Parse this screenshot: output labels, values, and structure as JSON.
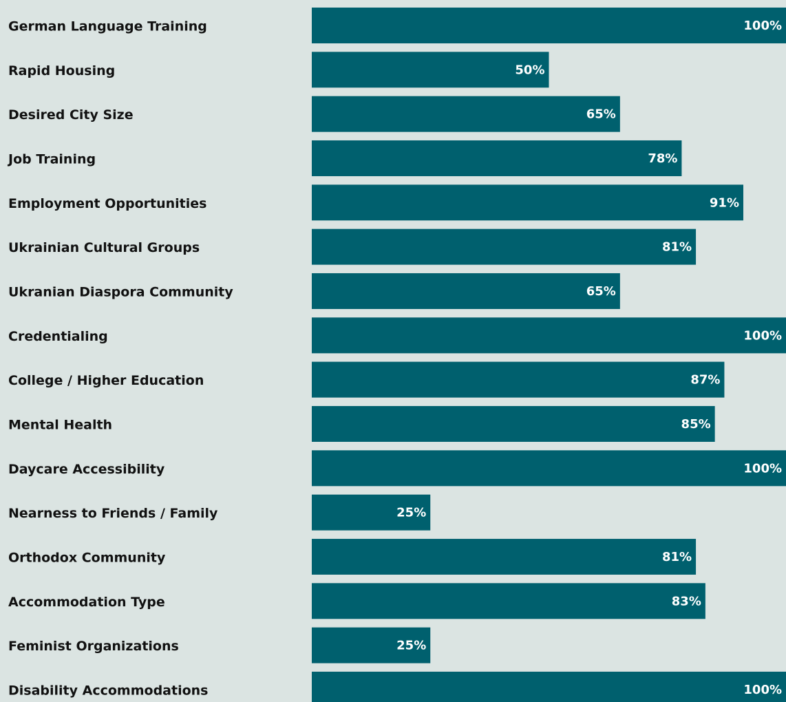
{
  "chart_data": {
    "type": "bar",
    "orientation": "horizontal",
    "color": "#00606e",
    "background": "#dbe4e2",
    "categories": [
      "German Language Training",
      "Rapid Housing",
      "Desired City Size",
      "Job Training",
      "Employment Opportunities",
      "Ukrainian Cultural Groups",
      "Ukranian Diaspora Community",
      "Credentialing",
      "College / Higher Education",
      "Mental Health",
      "Daycare Accessibility",
      "Nearness to Friends / Family",
      "Orthodox Community",
      "Accommodation Type",
      "Feminist Organizations",
      "Disability Accommodations"
    ],
    "values": [
      100,
      50,
      65,
      78,
      91,
      81,
      65,
      100,
      87,
      85,
      100,
      25,
      81,
      83,
      25,
      100
    ],
    "value_labels": [
      "100%",
      "50%",
      "65%",
      "78%",
      "91%",
      "81%",
      "65%",
      "100%",
      "87%",
      "85%",
      "100%",
      "25%",
      "81%",
      "83%",
      "25%",
      "100%"
    ],
    "xlim": [
      0,
      100
    ]
  }
}
